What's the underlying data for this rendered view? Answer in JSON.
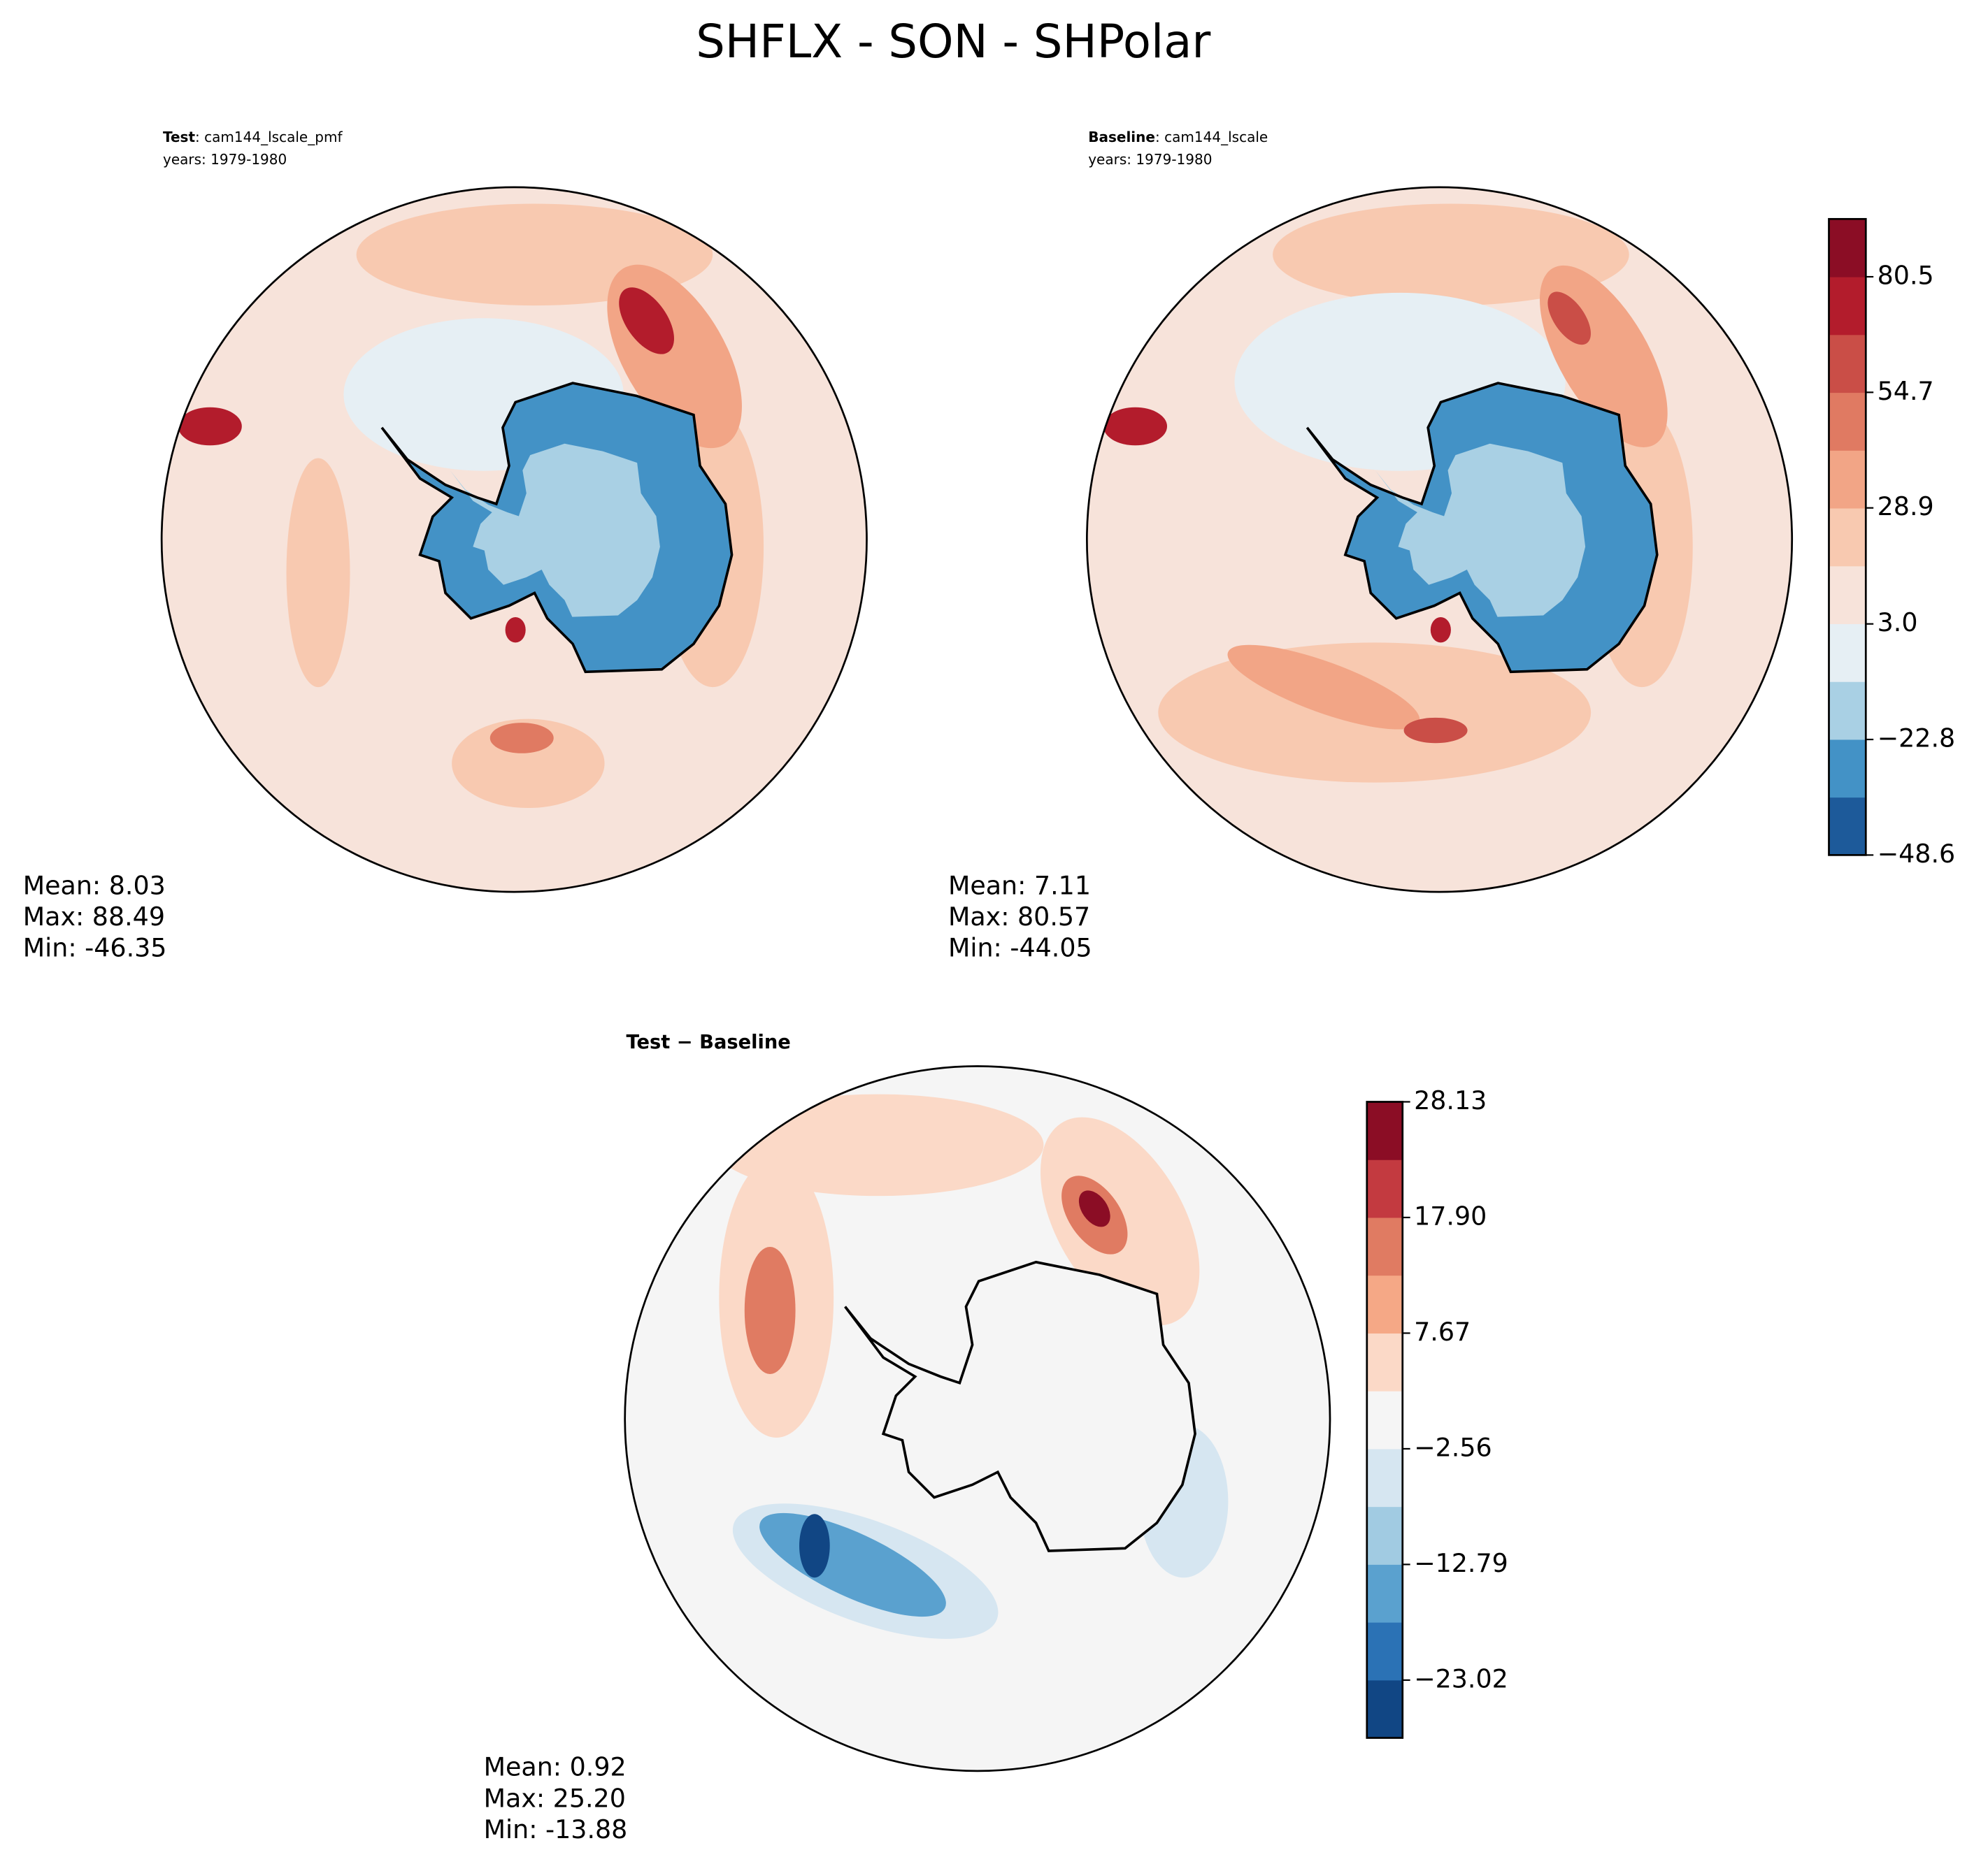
{
  "title": "SHFLX - SON - SHPolar",
  "panels": [
    {
      "heading": "Test",
      "case": ": cam144_lscale_pmf",
      "years": "years: 1979-1980",
      "stats": [
        "Mean:  8.03",
        "Max: 88.49",
        "Min: -46.35"
      ]
    },
    {
      "heading": "Baseline",
      "case": ": cam144_lscale",
      "years": "years: 1979-1980",
      "stats": [
        "Mean:  7.11",
        "Max: 80.57",
        "Min: -44.05"
      ]
    },
    {
      "heading": "Test − Baseline",
      "stats": [
        "Mean:  0.92",
        "Max: 25.20",
        "Min: -13.88"
      ]
    }
  ],
  "colorbars": [
    {
      "ylim": [
        -48.6,
        93.4
      ],
      "yticks": [
        {
          "value": -48.6,
          "label": "−48.6"
        },
        {
          "value": -22.8,
          "label": "−22.8"
        },
        {
          "value": 3.0,
          "label": "3.0"
        },
        28.9,
        54.7,
        80.5
      ],
      "colors": [
        "#1d5a9a",
        "#4392c6",
        "#a9d0e4",
        "#e6eff4",
        "#f7e3da",
        "#f8c9b0",
        "#f2a586",
        "#e07a62",
        "#ca4e47",
        "#b31c2c",
        "#8b0d25"
      ]
    },
    {
      "ylim": [
        -28.13,
        28.13
      ],
      "yticks": [
        {
          "value": -23.02,
          "label": "−23.02"
        },
        {
          "value": -12.79,
          "label": "−12.79"
        },
        {
          "value": -2.56,
          "label": "−2.56"
        },
        7.67,
        {
          "value": 17.9,
          "label": "17.90"
        },
        28.13
      ],
      "colors": [
        "#114684",
        "#2b72b5",
        "#5aa1cf",
        "#a1cbe2",
        "#d6e6f1",
        "#f5f5f5",
        "#fbd9c7",
        "#f5a886",
        "#e07b62",
        "#c33a40",
        "#8b0d25"
      ]
    }
  ]
}
